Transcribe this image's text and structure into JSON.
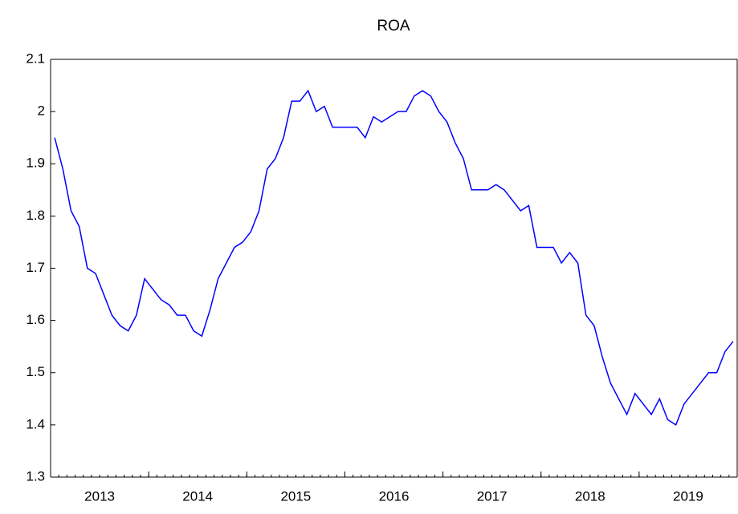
{
  "chart_data": {
    "type": "line",
    "title": "ROA",
    "x": [
      "2013-01",
      "2013-02",
      "2013-03",
      "2013-04",
      "2013-05",
      "2013-06",
      "2013-07",
      "2013-08",
      "2013-09",
      "2013-10",
      "2013-11",
      "2013-12",
      "2014-01",
      "2014-02",
      "2014-03",
      "2014-04",
      "2014-05",
      "2014-06",
      "2014-07",
      "2014-08",
      "2014-09",
      "2014-10",
      "2014-11",
      "2014-12",
      "2015-01",
      "2015-02",
      "2015-03",
      "2015-04",
      "2015-05",
      "2015-06",
      "2015-07",
      "2015-08",
      "2015-09",
      "2015-10",
      "2015-11",
      "2015-12",
      "2016-01",
      "2016-02",
      "2016-03",
      "2016-04",
      "2016-05",
      "2016-06",
      "2016-07",
      "2016-08",
      "2016-09",
      "2016-10",
      "2016-11",
      "2016-12",
      "2017-01",
      "2017-02",
      "2017-03",
      "2017-04",
      "2017-05",
      "2017-06",
      "2017-07",
      "2017-08",
      "2017-09",
      "2017-10",
      "2017-11",
      "2017-12",
      "2018-01",
      "2018-02",
      "2018-03",
      "2018-04",
      "2018-05",
      "2018-06",
      "2018-07",
      "2018-08",
      "2018-09",
      "2018-10",
      "2018-11",
      "2018-12",
      "2019-01",
      "2019-02",
      "2019-03",
      "2019-04",
      "2019-05",
      "2019-06",
      "2019-07",
      "2019-08",
      "2019-09",
      "2019-10",
      "2019-11",
      "2019-12"
    ],
    "series": [
      {
        "color": "#0000ff",
        "values": [
          1.95,
          1.89,
          1.81,
          1.78,
          1.7,
          1.69,
          1.65,
          1.61,
          1.59,
          1.58,
          1.61,
          1.68,
          1.66,
          1.64,
          1.63,
          1.61,
          1.61,
          1.58,
          1.57,
          1.62,
          1.68,
          1.71,
          1.74,
          1.75,
          1.77,
          1.81,
          1.89,
          1.91,
          1.95,
          2.02,
          2.02,
          2.04,
          2.0,
          2.01,
          1.97,
          1.97,
          1.97,
          1.97,
          1.95,
          1.99,
          1.98,
          1.99,
          2.0,
          2.0,
          2.03,
          2.04,
          2.03,
          2.0,
          1.98,
          1.94,
          1.91,
          1.85,
          1.85,
          1.85,
          1.86,
          1.85,
          1.83,
          1.81,
          1.82,
          1.74,
          1.74,
          1.74,
          1.71,
          1.73,
          1.71,
          1.61,
          1.59,
          1.53,
          1.48,
          1.45,
          1.42,
          1.46,
          1.44,
          1.42,
          1.45,
          1.41,
          1.4,
          1.44,
          1.46,
          1.48,
          1.5,
          1.5,
          1.54,
          1.56
        ]
      }
    ],
    "ylim": [
      1.3,
      2.1
    ],
    "yticks": [
      1.3,
      1.4,
      1.5,
      1.6,
      1.7,
      1.8,
      1.9,
      2.0,
      2.1
    ],
    "xlim": [
      2013,
      2020
    ],
    "xticks": [
      2013,
      2014,
      2015,
      2016,
      2017,
      2018,
      2019
    ]
  }
}
